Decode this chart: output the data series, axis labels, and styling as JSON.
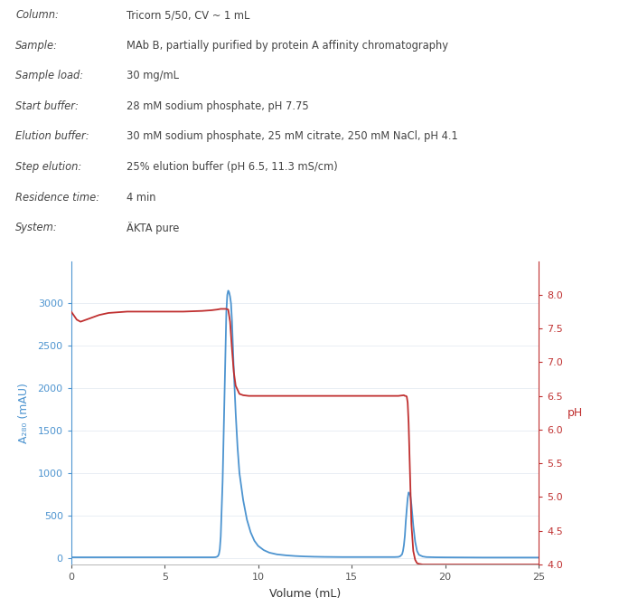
{
  "info_labels": [
    "Column:",
    "Sample:",
    "Sample load:",
    "Start buffer:",
    "Elution buffer:",
    "Step elution:",
    "Residence time:",
    "System:"
  ],
  "info_values": [
    "Tricorn 5/50, CV ~ 1 mL",
    "MAb B, partially purified by protein A affinity chromatography",
    "30 mg/mL",
    "28 mM sodium phosphate, pH 7.75",
    "30 mM sodium phosphate, 25 mM citrate, 250 mM NaCl, pH 4.1",
    "25% elution buffer (pH 6.5, 11.3 mS/cm)",
    "4 min",
    "ÄKTA pure"
  ],
  "blue_color": "#4d94d0",
  "red_color": "#c03030",
  "xlabel": "Volume (mL)",
  "ylabel_left": "A₂₈₀ (mAU)",
  "ylabel_right": "pH",
  "xlim": [
    0,
    25
  ],
  "ylim_left": [
    -80,
    3500
  ],
  "ylim_right": [
    4.0,
    8.5
  ],
  "yticks_left": [
    0,
    500,
    1000,
    1500,
    2000,
    2500,
    3000
  ],
  "yticks_right": [
    4.0,
    4.5,
    5.0,
    5.5,
    6.0,
    6.5,
    7.0,
    7.5,
    8.0
  ],
  "xticks": [
    0,
    5,
    10,
    15,
    20,
    25
  ],
  "blue_x": [
    0,
    0.05,
    7.5,
    7.6,
    7.7,
    7.75,
    7.8,
    7.85,
    7.9,
    7.95,
    8.0,
    8.1,
    8.2,
    8.3,
    8.35,
    8.4,
    8.45,
    8.5,
    8.55,
    8.6,
    8.65,
    8.7,
    8.8,
    8.9,
    9.0,
    9.2,
    9.4,
    9.6,
    9.8,
    10.0,
    10.3,
    10.6,
    11.0,
    11.5,
    12.0,
    12.5,
    13.0,
    13.5,
    14.0,
    14.5,
    15.0,
    15.5,
    16.0,
    16.5,
    17.0,
    17.3,
    17.5,
    17.6,
    17.7,
    17.75,
    17.8,
    17.85,
    17.9,
    17.95,
    18.0,
    18.05,
    18.1,
    18.15,
    18.2,
    18.3,
    18.4,
    18.5,
    18.6,
    18.8,
    19.0,
    19.5,
    20.0,
    21.0,
    22.0,
    23.0,
    24.0,
    25.0
  ],
  "blue_y": [
    5,
    5,
    5,
    5,
    6,
    8,
    12,
    20,
    40,
    100,
    250,
    900,
    1900,
    2900,
    3100,
    3150,
    3130,
    3080,
    3000,
    2800,
    2500,
    2200,
    1700,
    1300,
    1000,
    680,
    450,
    300,
    200,
    140,
    90,
    60,
    40,
    28,
    20,
    15,
    12,
    10,
    9,
    8,
    8,
    8,
    8,
    8,
    8,
    8,
    10,
    18,
    40,
    80,
    150,
    260,
    430,
    570,
    700,
    770,
    760,
    720,
    630,
    380,
    190,
    80,
    35,
    15,
    8,
    5,
    4,
    3,
    2,
    2,
    2,
    2
  ],
  "red_x": [
    0,
    0.3,
    0.5,
    0.8,
    1.0,
    1.5,
    2.0,
    3.0,
    4.0,
    5.0,
    6.0,
    7.0,
    7.5,
    7.8,
    8.0,
    8.1,
    8.2,
    8.3,
    8.4,
    8.5,
    8.6,
    8.7,
    8.8,
    9.0,
    9.2,
    9.5,
    10.0,
    11.0,
    12.0,
    13.0,
    14.0,
    15.0,
    16.0,
    17.0,
    17.5,
    17.8,
    17.85,
    17.9,
    17.95,
    18.0,
    18.05,
    18.1,
    18.15,
    18.2,
    18.3,
    18.4,
    18.5,
    18.6,
    18.8,
    19.0,
    19.5,
    20.0,
    21.0,
    22.0,
    23.0,
    24.0,
    25.0
  ],
  "red_y": [
    7.75,
    7.63,
    7.6,
    7.63,
    7.65,
    7.7,
    7.73,
    7.75,
    7.75,
    7.75,
    7.75,
    7.76,
    7.77,
    7.78,
    7.79,
    7.79,
    7.79,
    7.79,
    7.78,
    7.6,
    7.2,
    6.85,
    6.65,
    6.53,
    6.51,
    6.5,
    6.5,
    6.5,
    6.5,
    6.5,
    6.5,
    6.5,
    6.5,
    6.5,
    6.5,
    6.51,
    6.5,
    6.5,
    6.49,
    6.4,
    6.1,
    5.6,
    5.1,
    4.6,
    4.2,
    4.07,
    4.02,
    4.01,
    4.0,
    4.0,
    4.0,
    4.0,
    4.0,
    4.0,
    4.0,
    4.0,
    4.0
  ]
}
